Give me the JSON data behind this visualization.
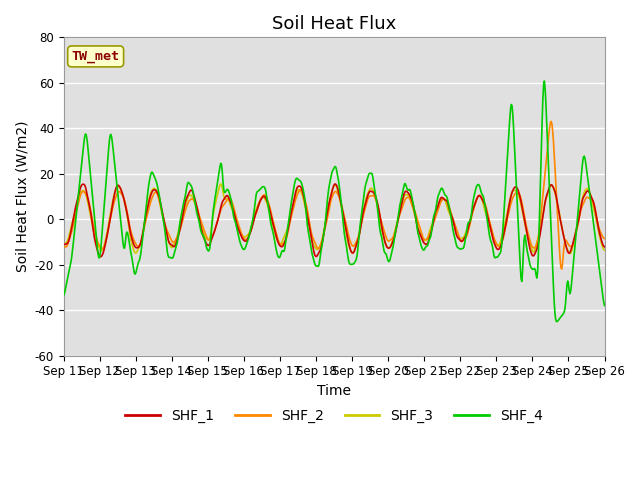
{
  "title": "Soil Heat Flux",
  "xlabel": "Time",
  "ylabel": "Soil Heat Flux (W/m2)",
  "ylim": [
    -60,
    80
  ],
  "x_tick_labels": [
    "Sep 11",
    "Sep 12",
    "Sep 13",
    "Sep 14",
    "Sep 15",
    "Sep 16",
    "Sep 17",
    "Sep 18",
    "Sep 19",
    "Sep 20",
    "Sep 21",
    "Sep 22",
    "Sep 23",
    "Sep 24",
    "Sep 25",
    "Sep 26"
  ],
  "legend_label": "TW_met",
  "legend_text_color": "#8b0000",
  "legend_box_color": "#ffffcc",
  "legend_box_edge": "#999900",
  "series_colors": [
    "#cc0000",
    "#ff8800",
    "#cccc00",
    "#00cc00"
  ],
  "series_labels": [
    "SHF_1",
    "SHF_2",
    "SHF_3",
    "SHF_4"
  ],
  "background_color": "#e0e0e0",
  "title_fontsize": 13,
  "axis_label_fontsize": 10,
  "tick_fontsize": 8.5,
  "legend_fontsize": 10
}
